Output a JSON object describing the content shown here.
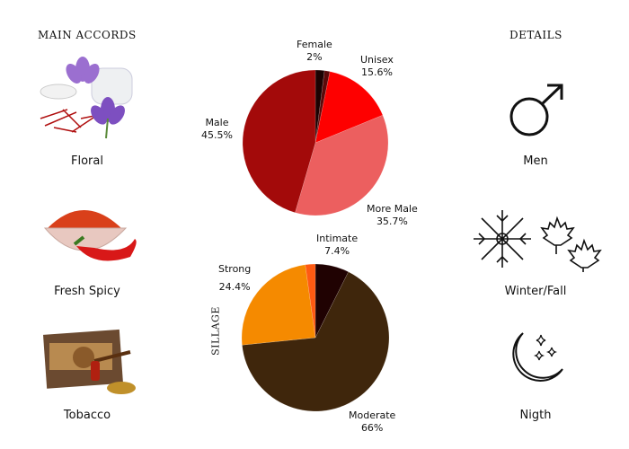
{
  "headers": {
    "main_accords": "MAIN ACCORDS",
    "details": "DETAILS"
  },
  "accords": [
    {
      "label": "Floral",
      "icon": "saffron-crocus-image"
    },
    {
      "label": "Fresh Spicy",
      "icon": "chili-pepper-image"
    },
    {
      "label": "Tobacco",
      "icon": "tobacco-pipe-image"
    }
  ],
  "details": [
    {
      "label": "Men",
      "icon": "male-symbol-icon"
    },
    {
      "label": "Winter/Fall",
      "icon": "snowflake-maple-leaf-icon"
    },
    {
      "label": "Nigth",
      "icon": "moon-stars-icon"
    }
  ],
  "chart_data": [
    {
      "type": "pie",
      "title": "",
      "slices": [
        {
          "label": "Female",
          "value": 2,
          "display": "2%",
          "color": "#1c0202"
        },
        {
          "label": "",
          "value": 1.2,
          "display": "",
          "color": "#5c0a0a"
        },
        {
          "label": "Unisex",
          "value": 15.6,
          "display": "15.6%",
          "color": "#fe0000"
        },
        {
          "label": "More Male",
          "value": 35.7,
          "display": "35.7%",
          "color": "#ec5f5f"
        },
        {
          "label": "Male",
          "value": 45.5,
          "display": "45.5%",
          "color": "#a30a0a"
        }
      ]
    },
    {
      "type": "pie",
      "title": "SILLAGE",
      "slices": [
        {
          "label": "Intimate",
          "value": 7.4,
          "display": "7.4%",
          "color": "#200202"
        },
        {
          "label": "Moderate",
          "value": 66,
          "display": "66%",
          "color": "#3f260c"
        },
        {
          "label": "Strong",
          "value": 24.4,
          "display": "24.4%",
          "color": "#f58a00"
        },
        {
          "label": "",
          "value": 2.2,
          "display": "",
          "color": "#ff5a12"
        }
      ]
    }
  ]
}
